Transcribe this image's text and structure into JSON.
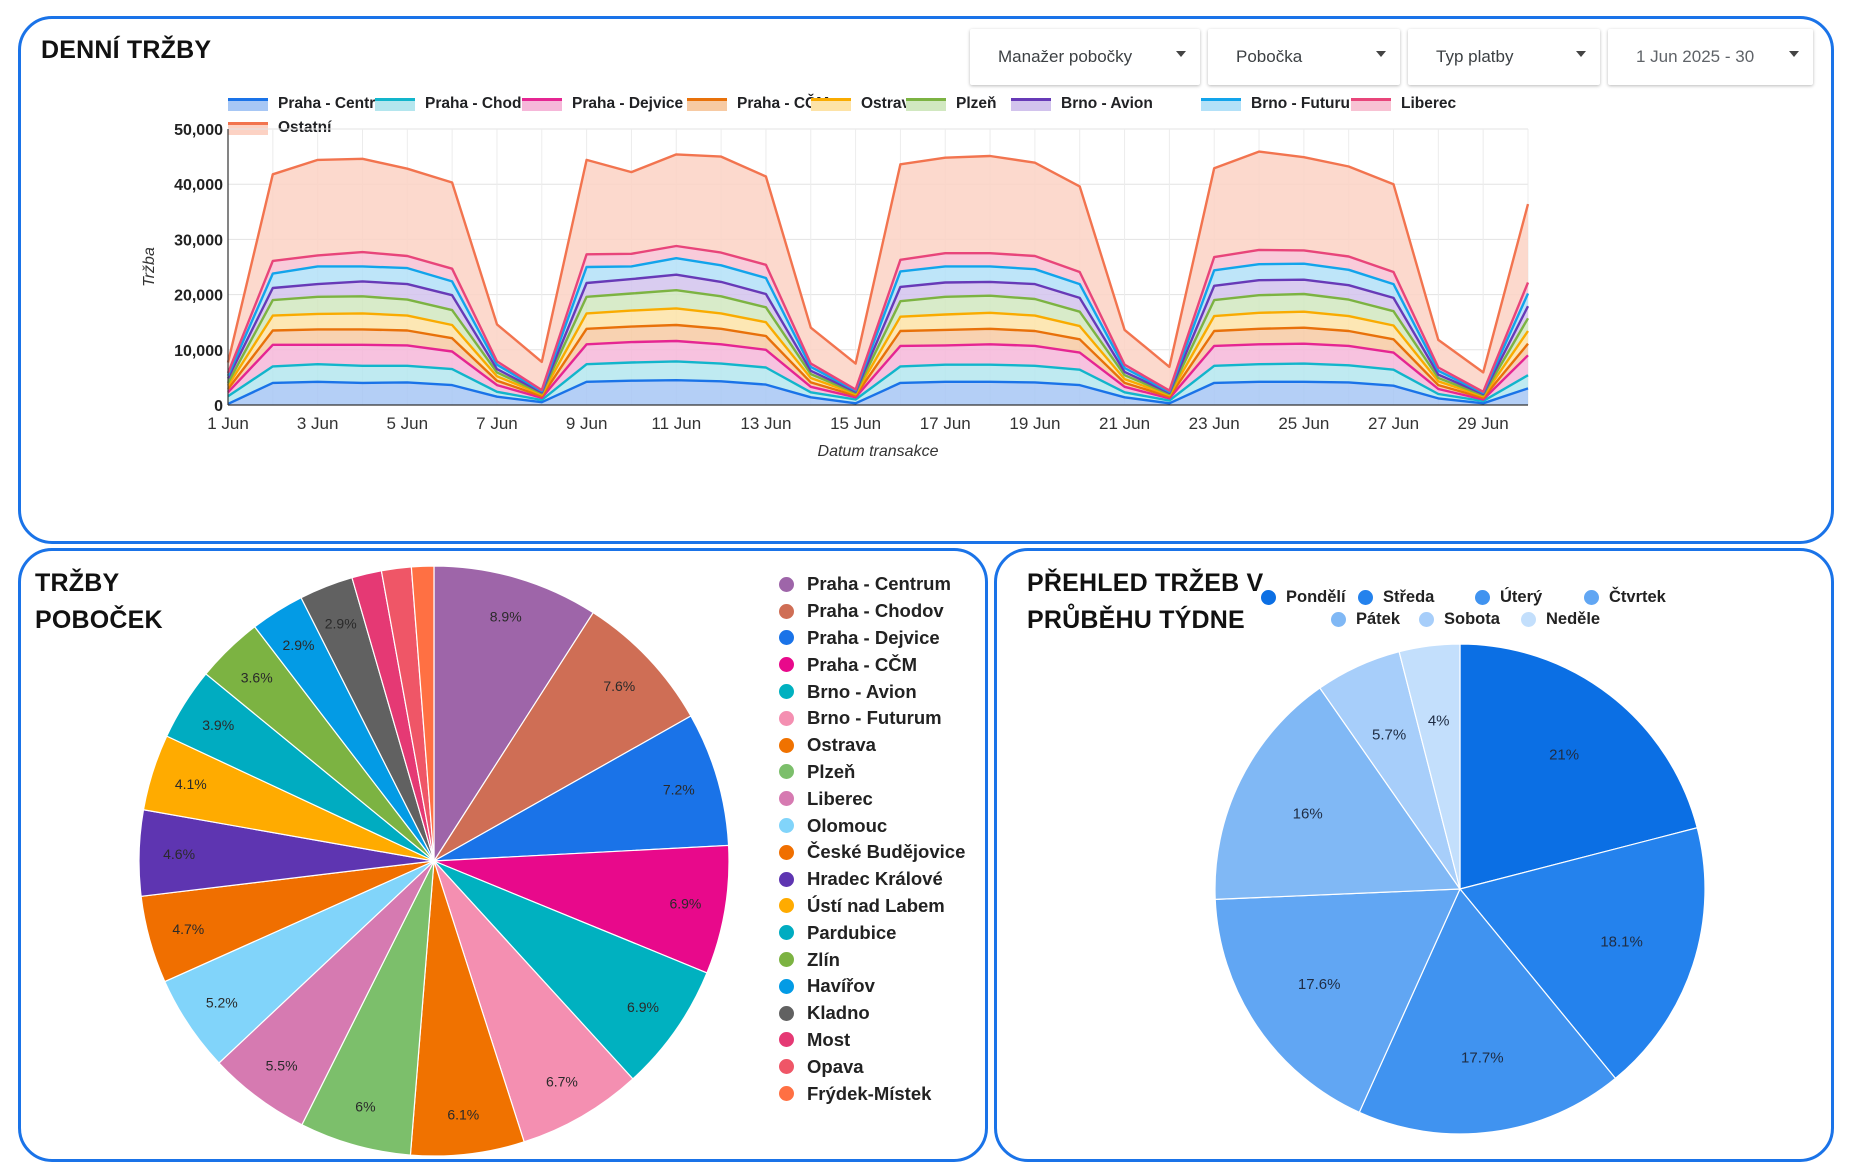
{
  "daily_panel": {
    "title": "DENNÍ TRŽBY",
    "filters": {
      "manager": "Manažer pobočky",
      "branch": "Pobočka",
      "payment": "Typ platby",
      "date_range": "1 Jun 2025 - 30"
    }
  },
  "branches_panel": {
    "title_line1": "TRŽBY",
    "title_line2": "POBOČEK"
  },
  "week_panel": {
    "title_line1": "PŘEHLED TRŽEB V",
    "title_line2": "PRŮBĚHU TÝDNE"
  },
  "chart_data": [
    {
      "type": "area",
      "stacked": true,
      "title": "DENNÍ TRŽBY",
      "xlabel": "Datum transakce",
      "ylabel": "Tržba",
      "ylim": [
        0,
        50000
      ],
      "yticks": [
        "0",
        "10,000",
        "20,000",
        "30,000",
        "40,000",
        "50,000"
      ],
      "yticks_values": [
        0,
        10000,
        20000,
        30000,
        40000,
        50000
      ],
      "x": [
        1,
        2,
        3,
        4,
        5,
        6,
        7,
        8,
        9,
        10,
        11,
        12,
        13,
        14,
        15,
        16,
        17,
        18,
        19,
        20,
        21,
        22,
        23,
        24,
        25,
        26,
        27,
        28,
        29,
        30
      ],
      "xticks": [
        "1 Jun",
        "3 Jun",
        "5 Jun",
        "7 Jun",
        "9 Jun",
        "11 Jun",
        "13 Jun",
        "15 Jun",
        "17 Jun",
        "19 Jun",
        "21 Jun",
        "23 Jun",
        "25 Jun",
        "27 Jun",
        "29 Jun"
      ],
      "xticks_values": [
        1,
        3,
        5,
        7,
        9,
        11,
        13,
        15,
        17,
        19,
        21,
        23,
        25,
        27,
        29
      ],
      "legend": "top",
      "series": [
        {
          "name": "Praha - Centrum",
          "color": "#1a73e8",
          "fill": "#a7c7f5",
          "values": [
            200,
            4000,
            4200,
            4000,
            4100,
            3600,
            1500,
            500,
            4200,
            4400,
            4500,
            4300,
            3700,
            1400,
            300,
            4000,
            4200,
            4200,
            4100,
            3600,
            1400,
            300,
            4000,
            4200,
            4200,
            4100,
            3500,
            1200,
            300,
            3000
          ]
        },
        {
          "name": "Praha - Chodov",
          "color": "#12b5cb",
          "fill": "#b4e6ee",
          "values": [
            1400,
            3000,
            3200,
            3100,
            3000,
            2900,
            900,
            400,
            3200,
            3300,
            3400,
            3200,
            3100,
            900,
            700,
            3000,
            3100,
            3100,
            3000,
            2800,
            900,
            500,
            3100,
            3200,
            3300,
            3100,
            2900,
            800,
            400,
            2400
          ]
        },
        {
          "name": "Praha - Dejvice",
          "color": "#e52592",
          "fill": "#f6b7d9",
          "values": [
            700,
            3900,
            3500,
            3800,
            3700,
            3200,
            1200,
            400,
            3600,
            3700,
            3700,
            3500,
            3200,
            1000,
            400,
            3700,
            3500,
            3700,
            3600,
            3100,
            1000,
            400,
            3600,
            3600,
            3600,
            3500,
            3100,
            900,
            300,
            3600
          ]
        },
        {
          "name": "Praha - CČM",
          "color": "#e8710a",
          "fill": "#f7caa3",
          "values": [
            600,
            2600,
            2800,
            2800,
            2700,
            2400,
            800,
            300,
            2800,
            2800,
            2900,
            2800,
            2500,
            800,
            300,
            2700,
            2800,
            2800,
            2700,
            2400,
            700,
            300,
            2700,
            2800,
            2900,
            2700,
            2400,
            700,
            300,
            2100
          ]
        },
        {
          "name": "Ostrava",
          "color": "#f9ab00",
          "fill": "#fde3a7",
          "values": [
            600,
            2700,
            2800,
            2900,
            2700,
            2400,
            800,
            300,
            2800,
            2900,
            3000,
            2800,
            2500,
            800,
            300,
            2600,
            2800,
            2900,
            2800,
            2400,
            700,
            300,
            2700,
            2900,
            2900,
            2700,
            2500,
            700,
            300,
            2300
          ]
        },
        {
          "name": "Plzeň",
          "color": "#7cb342",
          "fill": "#d1e8c0",
          "values": [
            500,
            2800,
            3100,
            3100,
            2900,
            2700,
            700,
            200,
            3000,
            3100,
            3300,
            3100,
            2700,
            700,
            200,
            2800,
            3200,
            3100,
            3000,
            2600,
            700,
            200,
            2900,
            3200,
            3200,
            3000,
            2600,
            600,
            200,
            2300
          ]
        },
        {
          "name": "Brno - Avion",
          "color": "#673ab7",
          "fill": "#d2c3ed",
          "values": [
            800,
            2200,
            2300,
            2700,
            2800,
            2700,
            600,
            200,
            2500,
            2600,
            2800,
            2600,
            2400,
            600,
            200,
            2600,
            2600,
            2500,
            2700,
            2500,
            600,
            200,
            2600,
            2700,
            2600,
            2600,
            2400,
            600,
            200,
            2200
          ]
        },
        {
          "name": "Brno - Futurum",
          "color": "#12a4eb",
          "fill": "#b3e1f8",
          "values": [
            500,
            2600,
            3200,
            2700,
            2900,
            2500,
            800,
            200,
            2900,
            2300,
            3000,
            3000,
            2900,
            700,
            200,
            2800,
            2900,
            2800,
            2700,
            2500,
            700,
            200,
            2800,
            2900,
            2900,
            2800,
            2500,
            700,
            200,
            2300
          ]
        },
        {
          "name": "Liberec",
          "color": "#e8457a",
          "fill": "#f8c2d3",
          "values": [
            500,
            2300,
            2000,
            2600,
            2200,
            2300,
            600,
            200,
            2300,
            2300,
            2200,
            2300,
            2400,
            600,
            200,
            2100,
            2400,
            2400,
            2400,
            2200,
            600,
            200,
            2400,
            2600,
            2400,
            2400,
            2200,
            600,
            200,
            2000
          ]
        },
        {
          "name": "Ostatní",
          "color": "#f2744f",
          "fill": "#fcd2c4",
          "values": [
            1900,
            15700,
            17300,
            16900,
            15800,
            15600,
            6700,
            5100,
            17100,
            14800,
            16600,
            17400,
            16000,
            6500,
            4700,
            17300,
            17300,
            17600,
            16900,
            15500,
            6300,
            4300,
            16100,
            17800,
            16900,
            16300,
            15900,
            5000,
            3500,
            14200
          ]
        }
      ]
    },
    {
      "type": "pie",
      "title": "TRŽBY POBOČEK",
      "legend": "right",
      "categories": [
        "Praha - Centrum",
        "Praha - Chodov",
        "Praha - Dejvice",
        "Praha - CČM",
        "Brno - Avion",
        "Brno - Futurum",
        "Ostrava",
        "Plzeň",
        "Liberec",
        "Olomouc",
        "České Budějovice",
        "Hradec Králové",
        "Ústí nad Labem",
        "Pardubice",
        "Zlín",
        "Havířov",
        "Kladno",
        "Most",
        "Opava",
        "Frýdek-Místek"
      ],
      "values": [
        8.9,
        7.6,
        7.2,
        6.9,
        6.9,
        6.7,
        6.1,
        6.0,
        5.5,
        5.2,
        4.7,
        4.6,
        4.1,
        3.9,
        3.6,
        2.9,
        2.9,
        1.6,
        1.6,
        1.2
      ],
      "labels": [
        "8.9%",
        "7.6%",
        "7.2%",
        "6.9%",
        "6.9%",
        "6.7%",
        "6.1%",
        "6%",
        "5.5%",
        "5.2%",
        "4.7%",
        "4.6%",
        "4.1%",
        "3.9%",
        "3.6%",
        "2.9%",
        "2.9%",
        "",
        "",
        ""
      ],
      "colors": [
        "#9e65a9",
        "#cf6e55",
        "#1a73e8",
        "#e8098b",
        "#00b1c0",
        "#f48fb1",
        "#f07200",
        "#7cbf6b",
        "#d67ab1",
        "#81d4fa",
        "#f06f00",
        "#5e35b1",
        "#ffab00",
        "#00acc1",
        "#7cb342",
        "#039be5",
        "#616161",
        "#e53974",
        "#ef5667",
        "#ff7043"
      ]
    },
    {
      "type": "pie",
      "title": "PŘEHLED TRŽEB V PRŮBĚHU TÝDNE",
      "legend": "top",
      "categories": [
        "Pondělí",
        "Středa",
        "Úterý",
        "Čtvrtek",
        "Pátek",
        "Sobota",
        "Neděle"
      ],
      "values": [
        21.0,
        18.1,
        17.7,
        17.6,
        16.0,
        5.7,
        4.0
      ],
      "labels": [
        "21%",
        "18.1%",
        "17.7%",
        "17.6%",
        "16%",
        "5.7%",
        "4%"
      ],
      "colors": [
        "#0b6fe4",
        "#2482ed",
        "#4093f0",
        "#61a6f3",
        "#80b8f5",
        "#a7cefa",
        "#c3dffc"
      ]
    }
  ]
}
